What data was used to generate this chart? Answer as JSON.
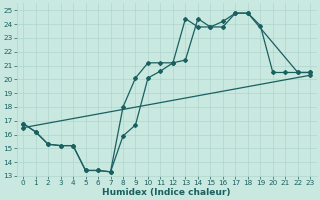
{
  "xlabel": "Humidex (Indice chaleur)",
  "bg_color": "#c8e8e0",
  "grid_color": "#b0d4cc",
  "line_color": "#1a6060",
  "xlim": [
    -0.5,
    23.5
  ],
  "ylim": [
    13,
    25.5
  ],
  "xticks": [
    0,
    1,
    2,
    3,
    4,
    5,
    6,
    7,
    8,
    9,
    10,
    11,
    12,
    13,
    14,
    15,
    16,
    17,
    18,
    19,
    20,
    21,
    22,
    23
  ],
  "yticks": [
    13,
    14,
    15,
    16,
    17,
    18,
    19,
    20,
    21,
    22,
    23,
    24,
    25
  ],
  "line1_x": [
    0,
    1,
    2,
    3,
    4,
    5,
    6,
    7,
    8,
    9,
    10,
    11,
    12,
    13,
    14,
    15,
    16,
    17,
    18,
    19,
    20,
    21,
    22,
    23
  ],
  "line1_y": [
    16.8,
    16.2,
    15.3,
    15.2,
    15.2,
    13.4,
    13.4,
    13.3,
    18.0,
    20.1,
    21.2,
    21.2,
    21.2,
    24.4,
    23.8,
    23.8,
    24.2,
    24.8,
    24.8,
    23.9,
    20.5,
    20.5,
    20.5,
    20.5
  ],
  "line2_x": [
    0,
    1,
    2,
    3,
    4,
    5,
    6,
    7,
    8,
    9,
    10,
    11,
    12,
    13,
    14,
    15,
    16,
    17,
    18,
    22,
    23
  ],
  "line2_y": [
    16.8,
    16.2,
    15.3,
    15.2,
    15.2,
    13.4,
    13.4,
    13.3,
    15.9,
    16.7,
    20.1,
    20.6,
    21.2,
    21.4,
    24.4,
    23.8,
    23.8,
    24.8,
    24.8,
    20.5,
    20.5
  ],
  "line3_x": [
    0,
    23
  ],
  "line3_y": [
    16.5,
    20.3
  ],
  "marker": "D",
  "markersize": 2.0,
  "linewidth": 0.9,
  "label_fontsize": 6.5,
  "tick_fontsize": 5.2
}
